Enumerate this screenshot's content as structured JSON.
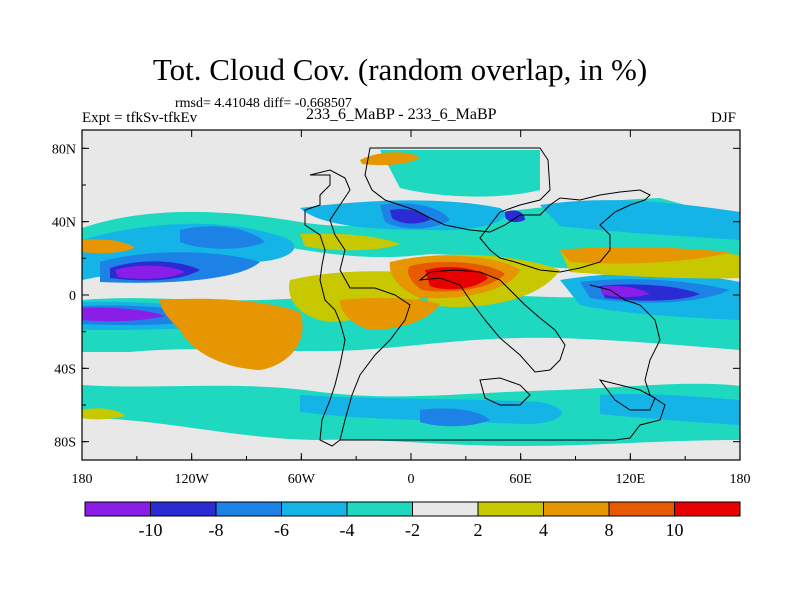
{
  "title": "Tot. Cloud Cov. (random overlap, in %)",
  "stats": "rmsd= 4.41048 diff= -0.668507",
  "left_label": "Expt = tfkSv-tfkEv",
  "center_label": "233_6_MaBP - 233_6_MaBP",
  "right_label": "DJF",
  "chart_data": {
    "type": "heatmap",
    "x_ticks": [
      "180",
      "120W",
      "60W",
      "0",
      "60E",
      "120E",
      "180"
    ],
    "x_values": [
      -180,
      -120,
      -60,
      0,
      60,
      120,
      180
    ],
    "y_ticks": [
      "80N",
      "40N",
      "0",
      "40S",
      "80S"
    ],
    "y_values": [
      80,
      40,
      0,
      -40,
      -80
    ],
    "xlim": [
      -180,
      180
    ],
    "ylim": [
      -90,
      90
    ],
    "colorbar": {
      "levels": [
        "-10",
        "-8",
        "-6",
        "-4",
        "-2",
        "2",
        "4",
        "8",
        "10"
      ],
      "colors": [
        "#8a1ee8",
        "#2b2bd4",
        "#1c82e6",
        "#14b4e6",
        "#1ed8c0",
        "#e8e8e8",
        "#c8c800",
        "#e69600",
        "#e65a00",
        "#e60000"
      ]
    },
    "features": [
      {
        "lon": -160,
        "lat": 12,
        "value": -10
      },
      {
        "lon": -168,
        "lat": -10,
        "value": -10
      },
      {
        "lon": -95,
        "lat": 35,
        "value": -6
      },
      {
        "lon": 40,
        "lat": 5,
        "value": 10
      },
      {
        "lon": 110,
        "lat": 2,
        "value": -9
      },
      {
        "lon": -80,
        "lat": -15,
        "value": 6
      },
      {
        "lon": 130,
        "lat": 10,
        "value": 5
      }
    ]
  }
}
